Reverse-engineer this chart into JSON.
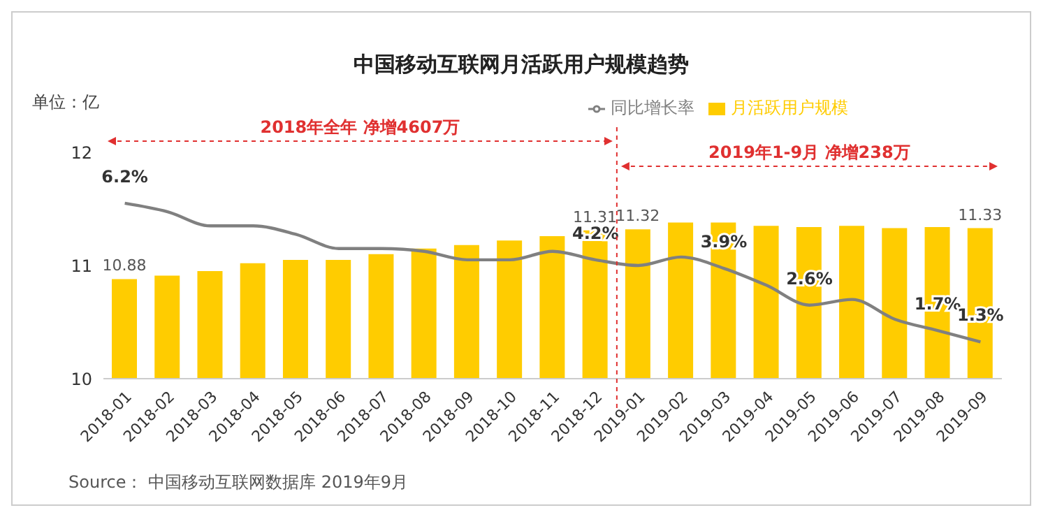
{
  "chart_data": {
    "type": "bar",
    "title": "中国移动互联网月活跃用户规模趋势",
    "categories": [
      "2018-01",
      "2018-02",
      "2018-03",
      "2018-04",
      "2018-05",
      "2018-06",
      "2018-07",
      "2018-08",
      "2018-09",
      "2018-10",
      "2018-11",
      "2018-12",
      "2019-01",
      "2019-02",
      "2019-03",
      "2019-04",
      "2019-05",
      "2019-06",
      "2019-07",
      "2019-08",
      "2019-09"
    ],
    "series": [
      {
        "name": "月活跃用户规模",
        "color": "#ffcc00",
        "values": [
          10.88,
          10.91,
          10.95,
          11.02,
          11.05,
          11.05,
          11.1,
          11.15,
          11.18,
          11.22,
          11.26,
          11.31,
          11.32,
          11.38,
          11.38,
          11.35,
          11.34,
          11.35,
          11.33,
          11.34,
          11.33
        ],
        "value_labels": [
          "10.88",
          null,
          null,
          null,
          null,
          null,
          null,
          null,
          null,
          null,
          null,
          "11.31",
          "11.32",
          null,
          null,
          null,
          null,
          null,
          null,
          null,
          "11.33"
        ]
      },
      {
        "name": "同比增长率",
        "type": "line",
        "axis": "y2",
        "color": "#808080",
        "values": [
          6.2,
          5.9,
          5.4,
          5.4,
          5.1,
          4.6,
          4.6,
          4.5,
          4.2,
          4.2,
          4.5,
          4.2,
          4.0,
          4.3,
          3.9,
          3.3,
          2.6,
          2.8,
          2.1,
          1.7,
          1.3
        ],
        "value_labels": [
          "6.2%",
          null,
          null,
          null,
          null,
          null,
          null,
          null,
          null,
          null,
          null,
          "4.2%",
          null,
          null,
          "3.9%",
          null,
          "2.6%",
          null,
          null,
          "1.7%",
          "1.3%"
        ]
      }
    ],
    "ylim": [
      10,
      12
    ],
    "yticks": [
      10,
      11,
      12
    ],
    "annotations": [
      "单位：亿",
      "2018年全年 净增4607万",
      "2019年1-9月 净增238万",
      "Source： 中国移动互联网数据库 2019年9月"
    ],
    "legend": "top",
    "grid": false,
    "marker": "none",
    "line_style": "solid"
  }
}
